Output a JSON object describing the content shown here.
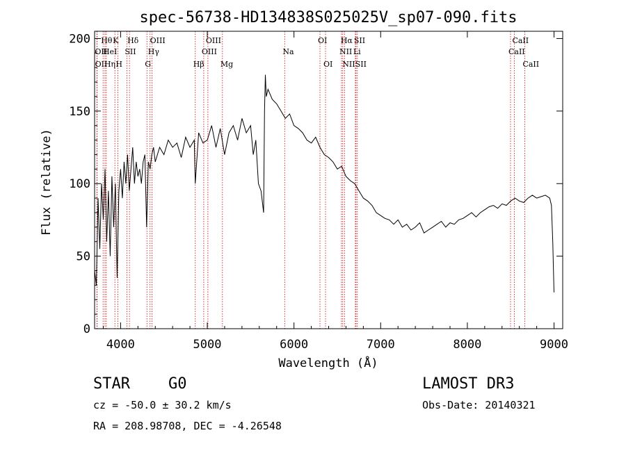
{
  "chart_data": {
    "type": "line",
    "title": "spec-56738-HD134838S025025V_sp07-090.fits",
    "xlabel": "Wavelength (Å)",
    "ylabel": "Flux (relative)",
    "xlim": [
      3700,
      9100
    ],
    "ylim": [
      0,
      205
    ],
    "x_ticks": [
      4000,
      5000,
      6000,
      7000,
      8000,
      9000
    ],
    "y_ticks": [
      0,
      50,
      100,
      150,
      200
    ],
    "grid": false,
    "series": [
      {
        "name": "flux",
        "x": [
          3700,
          3720,
          3740,
          3760,
          3780,
          3800,
          3820,
          3840,
          3860,
          3880,
          3900,
          3920,
          3940,
          3960,
          3980,
          4000,
          4020,
          4040,
          4060,
          4080,
          4100,
          4120,
          4140,
          4160,
          4180,
          4200,
          4220,
          4240,
          4260,
          4280,
          4300,
          4320,
          4340,
          4360,
          4380,
          4400,
          4450,
          4500,
          4550,
          4600,
          4650,
          4700,
          4750,
          4800,
          4850,
          4861,
          4900,
          4950,
          5000,
          5050,
          5100,
          5150,
          5200,
          5250,
          5300,
          5350,
          5400,
          5450,
          5500,
          5530,
          5560,
          5590,
          5620,
          5650,
          5660,
          5670,
          5680,
          5700,
          5750,
          5800,
          5850,
          5900,
          5950,
          6000,
          6050,
          6100,
          6150,
          6200,
          6250,
          6300,
          6350,
          6400,
          6450,
          6500,
          6550,
          6600,
          6650,
          6700,
          6750,
          6800,
          6850,
          6900,
          6950,
          7000,
          7050,
          7100,
          7150,
          7200,
          7250,
          7300,
          7350,
          7400,
          7450,
          7500,
          7550,
          7600,
          7650,
          7700,
          7750,
          7800,
          7850,
          7900,
          7950,
          8000,
          8050,
          8100,
          8150,
          8200,
          8250,
          8300,
          8350,
          8400,
          8450,
          8500,
          8550,
          8600,
          8650,
          8700,
          8750,
          8800,
          8850,
          8900,
          8950,
          8970,
          8985,
          9000
        ],
        "y": [
          40,
          30,
          90,
          55,
          100,
          75,
          110,
          60,
          95,
          50,
          105,
          70,
          100,
          35,
          95,
          110,
          90,
          115,
          100,
          120,
          95,
          110,
          125,
          100,
          115,
          105,
          110,
          100,
          115,
          120,
          70,
          115,
          110,
          120,
          125,
          115,
          125,
          120,
          130,
          125,
          128,
          118,
          132,
          125,
          130,
          100,
          135,
          128,
          130,
          140,
          125,
          138,
          120,
          135,
          140,
          130,
          145,
          135,
          140,
          120,
          130,
          100,
          95,
          80,
          150,
          175,
          160,
          165,
          158,
          155,
          150,
          145,
          148,
          140,
          138,
          135,
          130,
          128,
          132,
          125,
          120,
          118,
          115,
          110,
          112,
          105,
          102,
          100,
          95,
          90,
          88,
          85,
          80,
          78,
          76,
          75,
          72,
          75,
          70,
          72,
          68,
          70,
          73,
          66,
          68,
          70,
          72,
          74,
          70,
          73,
          72,
          75,
          76,
          78,
          80,
          77,
          80,
          82,
          84,
          85,
          83,
          86,
          85,
          88,
          90,
          88,
          87,
          90,
          92,
          90,
          91,
          92,
          90,
          85,
          60,
          25
        ]
      }
    ],
    "spectral_lines": [
      {
        "label": "Hθ",
        "wavelength": 3798,
        "row": 0
      },
      {
        "label": "OII",
        "wavelength": 3727,
        "row": 1
      },
      {
        "label": "OII",
        "wavelength": 3729,
        "row": 2
      },
      {
        "label": "HeI",
        "wavelength": 3820,
        "row": 1
      },
      {
        "label": "Hη",
        "wavelength": 3835,
        "row": 2
      },
      {
        "label": "K",
        "wavelength": 3934,
        "row": 0
      },
      {
        "label": "SII",
        "wavelength": 4072,
        "row": 1
      },
      {
        "label": "H",
        "wavelength": 3968,
        "row": 2
      },
      {
        "label": "Hδ",
        "wavelength": 4102,
        "row": 0
      },
      {
        "label": "OIII",
        "wavelength": 4363,
        "row": 0
      },
      {
        "label": "Hγ",
        "wavelength": 4340,
        "row": 1
      },
      {
        "label": "G",
        "wavelength": 4304,
        "row": 2
      },
      {
        "label": "OIII",
        "wavelength": 5007,
        "row": 0
      },
      {
        "label": "OIII",
        "wavelength": 4959,
        "row": 1
      },
      {
        "label": "Hβ",
        "wavelength": 4861,
        "row": 2
      },
      {
        "label": "Mg",
        "wavelength": 5175,
        "row": 2
      },
      {
        "label": "Na",
        "wavelength": 5893,
        "row": 1
      },
      {
        "label": "OI",
        "wavelength": 6300,
        "row": 0
      },
      {
        "label": "OI",
        "wavelength": 6364,
        "row": 2
      },
      {
        "label": "Hα",
        "wavelength": 6563,
        "row": 0
      },
      {
        "label": "SII",
        "wavelength": 6716,
        "row": 0
      },
      {
        "label": "NII",
        "wavelength": 6548,
        "row": 1
      },
      {
        "label": "Li",
        "wavelength": 6708,
        "row": 1
      },
      {
        "label": "NII",
        "wavelength": 6583,
        "row": 2
      },
      {
        "label": "SII",
        "wavelength": 6731,
        "row": 2
      },
      {
        "label": "CaII",
        "wavelength": 8542,
        "row": 0
      },
      {
        "label": "CaII",
        "wavelength": 8498,
        "row": 1
      },
      {
        "label": "CaII",
        "wavelength": 8662,
        "row": 2
      }
    ]
  },
  "info": {
    "object_class": "STAR",
    "subclass": "G0",
    "survey": "LAMOST DR3",
    "redshift_text": "cz = -50.0 ± 30.2 km/s",
    "obs_date": "Obs-Date: 20140321",
    "coords": "RA = 208.98708, DEC =  -4.26548"
  },
  "colors": {
    "line": "#000000",
    "marker": "#cc0000",
    "text": "#000000"
  }
}
